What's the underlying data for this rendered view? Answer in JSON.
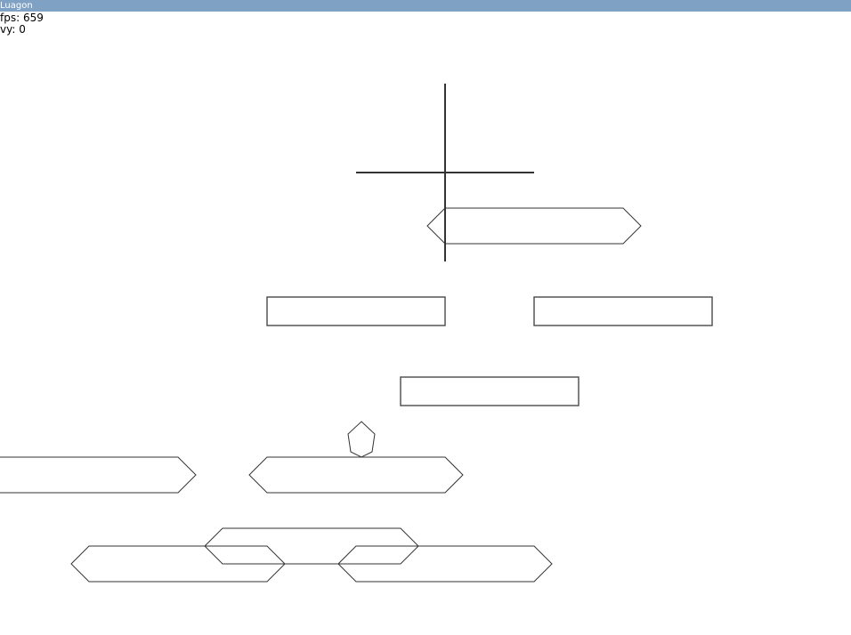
{
  "window": {
    "title": "Luagon"
  },
  "hud": {
    "fps_text": "fps: 659",
    "vy_text": "vy: 0"
  },
  "colors": {
    "titlebar": "#7ea1c4",
    "shape_stroke": "#333333",
    "box_stroke": "#555555",
    "background": "#ffffff"
  },
  "scene": {
    "crosshair": true,
    "player_shape": "pentagon",
    "platform_shapes": [
      "hexagon",
      "rectangle"
    ]
  }
}
